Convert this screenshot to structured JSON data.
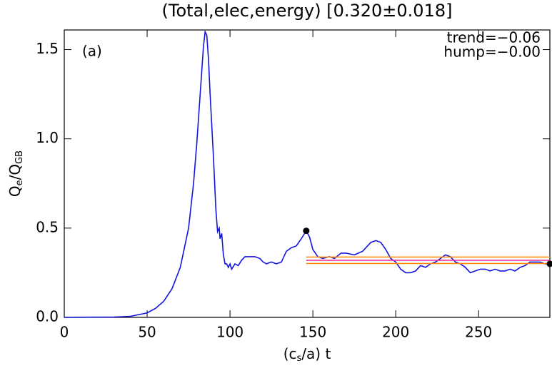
{
  "chart_data": {
    "type": "line",
    "title": "(Total,elec,energy) [0.320±0.018]",
    "xlabel": [
      {
        "text": "(c"
      },
      {
        "text": "s",
        "sub": true
      },
      {
        "text": "/a) t"
      }
    ],
    "ylabel": [
      {
        "text": "Q"
      },
      {
        "text": "e",
        "sub": true
      },
      {
        "text": "/Q"
      },
      {
        "text": "GB",
        "sub": true
      }
    ],
    "annotations": [
      "(a)",
      "trend=−0.06",
      "hump=−0.00"
    ],
    "x": [
      0,
      30,
      40,
      50,
      55,
      60,
      65,
      70,
      75,
      78,
      80,
      82,
      84,
      85,
      86,
      87,
      88,
      90,
      91.5,
      92.5,
      93.5,
      94,
      95,
      96,
      97,
      98,
      99,
      100,
      101,
      103,
      105,
      107,
      109,
      112,
      115,
      118,
      120,
      122,
      125,
      128,
      131,
      134,
      137,
      140,
      143,
      146,
      148,
      150,
      153,
      156,
      160,
      163,
      167,
      170,
      175,
      180,
      185,
      188,
      191,
      194,
      197,
      200,
      203,
      206,
      209,
      212,
      215,
      218,
      221,
      224,
      227,
      230,
      233,
      236,
      239,
      242,
      245,
      248,
      251,
      254,
      257,
      260,
      263,
      266,
      269,
      272,
      275,
      278,
      281,
      284,
      287,
      290,
      293
    ],
    "series": [
      {
        "color": "#1414e0",
        "values": [
          0,
          0.002,
          0.006,
          0.025,
          0.05,
          0.09,
          0.16,
          0.28,
          0.5,
          0.75,
          0.98,
          1.25,
          1.52,
          1.6,
          1.58,
          1.45,
          1.25,
          0.9,
          0.6,
          0.48,
          0.5,
          0.44,
          0.47,
          0.35,
          0.3,
          0.3,
          0.28,
          0.3,
          0.27,
          0.3,
          0.29,
          0.32,
          0.34,
          0.34,
          0.34,
          0.33,
          0.31,
          0.3,
          0.31,
          0.3,
          0.31,
          0.37,
          0.39,
          0.4,
          0.44,
          0.485,
          0.45,
          0.38,
          0.34,
          0.33,
          0.34,
          0.33,
          0.36,
          0.36,
          0.35,
          0.37,
          0.42,
          0.43,
          0.42,
          0.38,
          0.33,
          0.31,
          0.27,
          0.25,
          0.25,
          0.26,
          0.29,
          0.28,
          0.3,
          0.31,
          0.33,
          0.35,
          0.34,
          0.31,
          0.3,
          0.28,
          0.25,
          0.26,
          0.27,
          0.27,
          0.26,
          0.27,
          0.26,
          0.26,
          0.27,
          0.26,
          0.28,
          0.29,
          0.31,
          0.31,
          0.31,
          0.3,
          0.3
        ]
      }
    ],
    "hline_x": [
      146,
      293
    ],
    "hlines": [
      {
        "y": 0.338,
        "color": "#ff8c00"
      },
      {
        "y": 0.32,
        "color": "#e0359a"
      },
      {
        "y": 0.302,
        "color": "#ff8c00"
      }
    ],
    "markers": [
      {
        "x": 146,
        "y": 0.485
      },
      {
        "x": 293,
        "y": 0.3
      }
    ],
    "xlim": [
      0,
      293
    ],
    "ylim": [
      0,
      1.61
    ],
    "xticks": [
      0,
      50,
      100,
      150,
      200,
      250
    ],
    "yticks": [
      {
        "value": 0,
        "label": "0.0"
      },
      0.5,
      {
        "value": 1,
        "label": "1.0"
      },
      1.5
    ]
  }
}
